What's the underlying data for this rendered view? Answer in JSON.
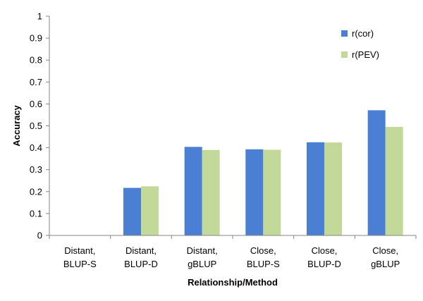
{
  "chart_data": {
    "type": "bar",
    "categories": [
      [
        "Distant,",
        "BLUP-S"
      ],
      [
        "Distant,",
        "BLUP-D"
      ],
      [
        "Distant,",
        "gBLUP"
      ],
      [
        "Close,",
        "BLUP-S"
      ],
      [
        "Close,",
        "BLUP-D"
      ],
      [
        "Close,",
        "gBLUP"
      ]
    ],
    "series": [
      {
        "name": "r(cor)",
        "color": "#4a7fd4",
        "values": [
          0,
          0.217,
          0.404,
          0.393,
          0.425,
          0.571
        ]
      },
      {
        "name": "r(PEV)",
        "color": "#c3d99a",
        "values": [
          0,
          0.224,
          0.39,
          0.391,
          0.424,
          0.495
        ]
      }
    ],
    "xlabel": "Relationship/Method",
    "ylabel": "Accuracy",
    "ylim": [
      0,
      1
    ],
    "yticks": [
      "0",
      "0.1",
      "0.2",
      "0.3",
      "0.4",
      "0.5",
      "0.6",
      "0.7",
      "0.8",
      "0.9",
      "1"
    ],
    "grid": false,
    "legend_position": "top-right"
  }
}
